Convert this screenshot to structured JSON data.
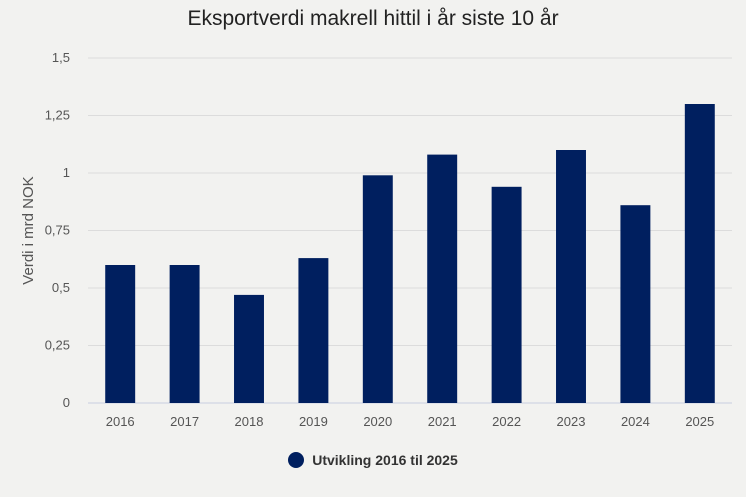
{
  "chart_data": {
    "type": "bar",
    "title": "Eksportverdi makrell hittil i år siste 10 år",
    "xlabel": "",
    "ylabel": "Verdi i mrd NOK",
    "categories": [
      "2016",
      "2017",
      "2018",
      "2019",
      "2020",
      "2021",
      "2022",
      "2023",
      "2024",
      "2025"
    ],
    "series": [
      {
        "name": "Utvikling 2016 til 2025",
        "values": [
          0.6,
          0.6,
          0.47,
          0.63,
          0.99,
          1.08,
          0.94,
          1.1,
          0.86,
          1.3
        ],
        "color": "#001f5f"
      }
    ],
    "ylim": [
      0,
      1.5
    ],
    "yticks": [
      0,
      0.25,
      0.5,
      0.75,
      1,
      1.25,
      1.5
    ],
    "ytick_labels": [
      "0",
      "0,25",
      "0,5",
      "0,75",
      "1",
      "1,25",
      "1,5"
    ],
    "grid": true,
    "legend_position": "bottom-center"
  }
}
